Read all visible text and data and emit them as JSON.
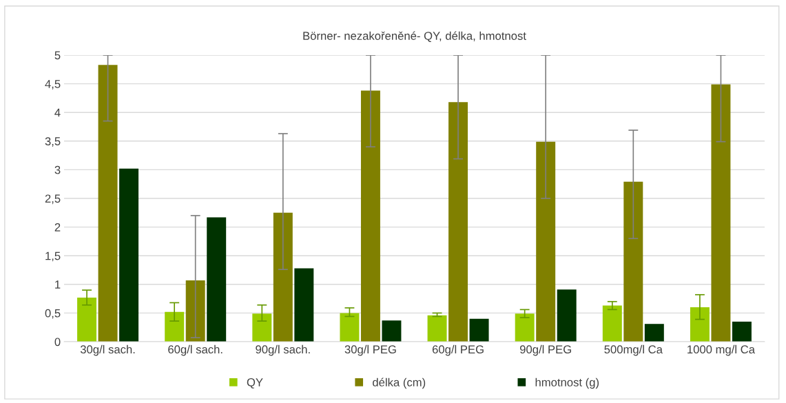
{
  "chart_data": {
    "type": "bar",
    "title": "Börner- nezakořeněné- QY, délka, hmotnost",
    "categories": [
      "30g/l sach.",
      "60g/l sach.",
      "90g/l sach.",
      "30g/l PEG",
      "60g/l PEG",
      "90g/l PEG",
      "500mg/l Ca",
      "1000 mg/l Ca"
    ],
    "series": [
      {
        "name": "QY",
        "color": "#99cc00",
        "values": [
          0.77,
          0.52,
          0.49,
          0.5,
          0.46,
          0.49,
          0.63,
          0.6
        ],
        "errors": [
          [
            0.64,
            0.9
          ],
          [
            0.36,
            0.68
          ],
          [
            0.36,
            0.64
          ],
          [
            0.44,
            0.59
          ],
          [
            0.44,
            0.5
          ],
          [
            0.42,
            0.56
          ],
          [
            0.56,
            0.7
          ],
          [
            0.39,
            0.82
          ]
        ]
      },
      {
        "name": "délka (cm)",
        "color": "#808000",
        "values": [
          4.83,
          1.07,
          2.25,
          4.38,
          4.18,
          3.49,
          2.79,
          4.49
        ],
        "errors": [
          [
            3.85,
            5
          ],
          [
            0.07,
            2.2
          ],
          [
            1.26,
            3.63
          ],
          [
            3.4,
            5
          ],
          [
            3.19,
            5
          ],
          [
            2.5,
            5
          ],
          [
            1.8,
            3.69
          ],
          [
            3.49,
            5
          ]
        ]
      },
      {
        "name": "hmotnost (g)",
        "color": "#003300",
        "values": [
          3.02,
          2.17,
          1.28,
          0.37,
          0.4,
          0.91,
          0.31,
          0.35
        ]
      }
    ],
    "ylim": [
      0,
      5
    ],
    "yticks": [
      0,
      {
        "value": 0.5,
        "label": "0,5"
      },
      1,
      {
        "value": 1.5,
        "label": "1,5"
      },
      2,
      {
        "value": 2.5,
        "label": "2,5"
      },
      3,
      {
        "value": 3.5,
        "label": "3,5"
      },
      4,
      {
        "value": 4.5,
        "label": "4,5"
      },
      5
    ],
    "grid": "y",
    "legend": "bottom"
  }
}
